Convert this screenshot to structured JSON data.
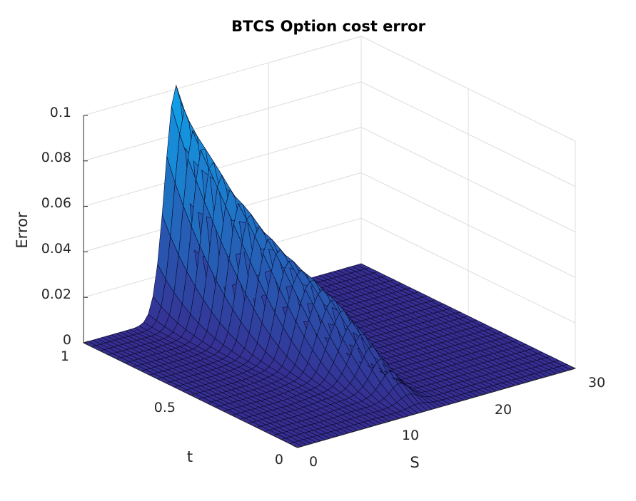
{
  "chart_data": {
    "type": "surface",
    "title": "BTCS Option cost error",
    "xlabel": "S",
    "ylabel": "t",
    "zlabel": "Error",
    "xlim": [
      0,
      30
    ],
    "ylim": [
      0,
      1
    ],
    "zlim": [
      0,
      0.1
    ],
    "xticks": [
      "0",
      "10",
      "20",
      "30"
    ],
    "yticks": [
      "0",
      "0.5",
      "1"
    ],
    "zticks": [
      "0",
      "0.02",
      "0.04",
      "0.06",
      "0.08",
      "0.1"
    ],
    "grid": true,
    "colormap": "parula",
    "description_points": [
      {
        "S": 10,
        "t": 1.0,
        "error": 0.1
      },
      {
        "S": 12,
        "t": 0.5,
        "error": 0.03
      },
      {
        "S": 12,
        "t": 0.0,
        "error": 0.0
      }
    ]
  }
}
